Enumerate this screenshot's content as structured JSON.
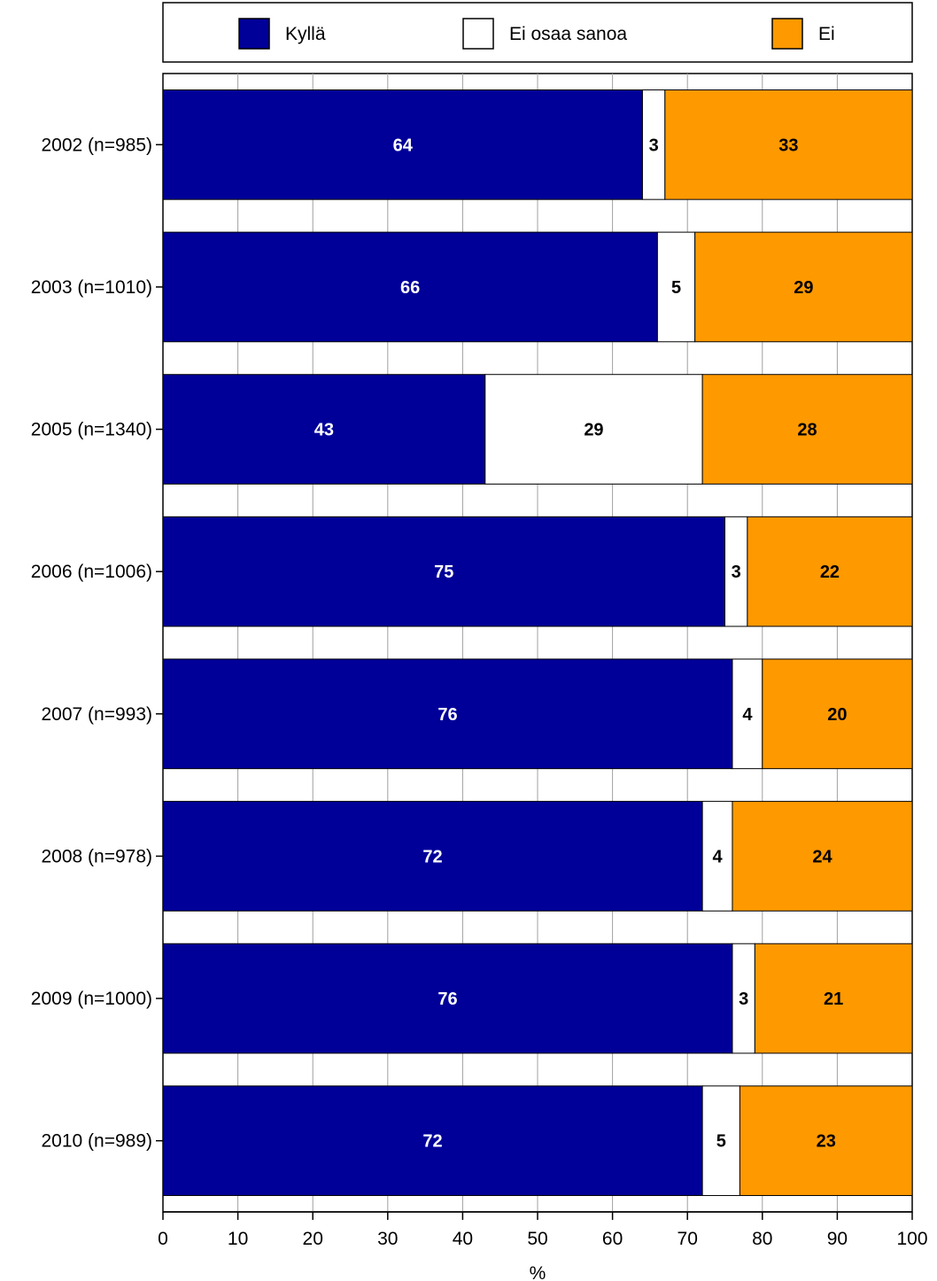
{
  "chart_data": {
    "type": "bar",
    "orientation": "horizontal",
    "stacked": true,
    "title": "",
    "xlabel": "%",
    "ylabel": "",
    "xlim": [
      0,
      100
    ],
    "xticks": [
      "0",
      "10",
      "20",
      "30",
      "40",
      "50",
      "60",
      "70",
      "80",
      "90",
      "100"
    ],
    "grid": true,
    "legend_position": "top",
    "categories": [
      "2002 (n=985)",
      "2003 (n=1010)",
      "2005 (n=1340)",
      "2006 (n=1006)",
      "2007 (n=993)",
      "2008 (n=978)",
      "2009 (n=1000)",
      "2010 (n=989)"
    ],
    "series": [
      {
        "name": "Kyllä",
        "color": "#000099",
        "label_color": "#ffffff",
        "values": [
          64,
          66,
          43,
          75,
          76,
          72,
          76,
          72
        ]
      },
      {
        "name": "Ei osaa sanoa",
        "color": "#ffffff",
        "label_color": "#000000",
        "values": [
          3,
          5,
          29,
          3,
          4,
          4,
          3,
          5
        ]
      },
      {
        "name": "Ei",
        "color": "#ff9900",
        "label_color": "#000000",
        "values": [
          33,
          29,
          28,
          22,
          20,
          24,
          21,
          23
        ]
      }
    ]
  }
}
